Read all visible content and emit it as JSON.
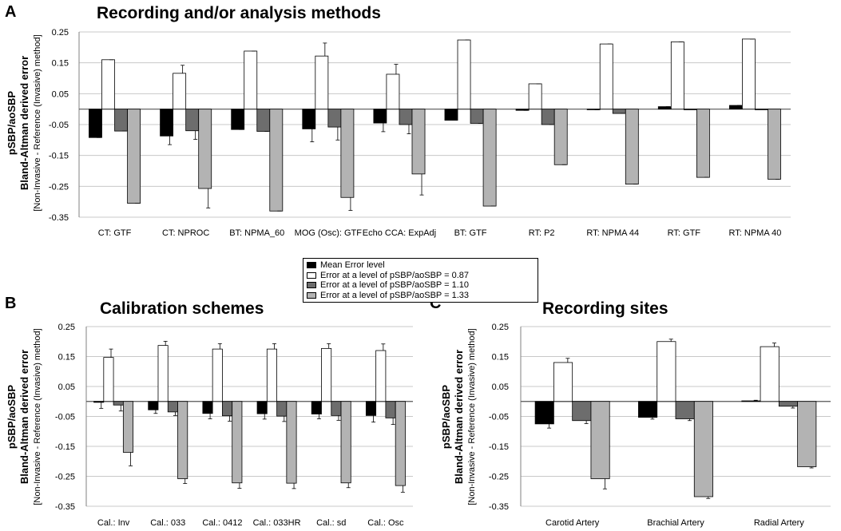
{
  "colors": {
    "mean": "#000000",
    "e087": "#ffffff",
    "e110": "#6d6d6d",
    "e133": "#b3b3b3",
    "grid": "#c8c8c8",
    "axis": "#808080"
  },
  "legend": {
    "items": [
      {
        "label": "Mean Error level",
        "color": "#000000"
      },
      {
        "label": "Error at a level of pSBP/aoSBP = 0.87",
        "color": "#ffffff"
      },
      {
        "label": "Error at a level of pSBP/aoSBP = 1.10",
        "color": "#6d6d6d"
      },
      {
        "label": "Error at a level of pSBP/aoSBP = 1.33",
        "color": "#b3b3b3"
      }
    ]
  },
  "chart_data": [
    {
      "panel": "A",
      "type": "bar",
      "title": "Recording and/or analysis methods",
      "ylabel_lines": [
        "pSBP/aoSBP",
        "Bland-Altman derived error",
        "[Non-Invasive - Reference (Invasive) method]"
      ],
      "ylim": [
        -0.35,
        0.25
      ],
      "yticks": [
        0.25,
        0.15,
        0.05,
        -0.05,
        -0.15,
        -0.25,
        -0.35
      ],
      "ytick_labels": [
        "0.25",
        "0.15",
        "0.05",
        "-0.05",
        "-0.15",
        "-0.25",
        "-0.35"
      ],
      "grid": true,
      "categories": [
        "CT: GTF",
        "CT: NPROC",
        "BT: NPMA_60",
        "MOG (Osc): GTF",
        "Echo CCA: ExpAdj",
        "BT: GTF",
        "RT: P2",
        "RT: NPMA 44",
        "RT: GTF",
        "RT: NPMA 40"
      ],
      "series": [
        {
          "name": "Mean Error level",
          "color": "#000000",
          "values": [
            -0.092,
            -0.087,
            -0.066,
            -0.064,
            -0.045,
            -0.036,
            -0.004,
            -0.002,
            0.008,
            0.012
          ],
          "errors": [
            0.0,
            0.028,
            0.0,
            0.042,
            0.028,
            0.0,
            0.0,
            0.0,
            0.0,
            0.0
          ]
        },
        {
          "name": "Error at a level of pSBP/aoSBP = 0.87",
          "color": "#ffffff",
          "values": [
            0.16,
            0.116,
            0.188,
            0.172,
            0.113,
            0.224,
            0.082,
            0.211,
            0.218,
            0.227
          ],
          "errors": [
            0.0,
            0.026,
            0.0,
            0.042,
            0.032,
            0.0,
            0.0,
            0.0,
            0.0,
            0.0
          ]
        },
        {
          "name": "Error at a level of pSBP/aoSBP = 1.10",
          "color": "#6d6d6d",
          "values": [
            -0.071,
            -0.07,
            -0.072,
            -0.058,
            -0.05,
            -0.046,
            -0.05,
            -0.014,
            -0.001,
            -0.001
          ],
          "errors": [
            0.0,
            0.028,
            0.0,
            0.042,
            0.03,
            0.0,
            0.0,
            0.0,
            0.0,
            0.0
          ]
        },
        {
          "name": "Error at a level of pSBP/aoSBP = 1.33",
          "color": "#b3b3b3",
          "values": [
            -0.305,
            -0.257,
            -0.33,
            -0.286,
            -0.21,
            -0.314,
            -0.18,
            -0.243,
            -0.221,
            -0.227
          ],
          "errors": [
            0.0,
            0.063,
            0.0,
            0.042,
            0.068,
            0.0,
            0.0,
            0.0,
            0.0,
            0.0
          ]
        }
      ]
    },
    {
      "panel": "B",
      "type": "bar",
      "title": "Calibration schemes",
      "ylabel_lines": [
        "pSBP/aoSBP",
        "Bland-Altman derived error",
        "[Non-Invasive - Reference (Invasive) method]"
      ],
      "ylim": [
        -0.35,
        0.25
      ],
      "yticks": [
        0.25,
        0.15,
        0.05,
        -0.05,
        -0.15,
        -0.25,
        -0.35
      ],
      "ytick_labels": [
        "0.25",
        "0.15",
        "0.05",
        "-0.05",
        "-0.15",
        "-0.25",
        "-0.35"
      ],
      "grid": true,
      "categories": [
        "Cal.: Inv",
        "Cal.: 033",
        "Cal.: 0412",
        "Cal.: 033HR",
        "Cal.: sd",
        "Cal.: Osc"
      ],
      "series": [
        {
          "name": "Mean Error level",
          "color": "#000000",
          "values": [
            -0.003,
            -0.028,
            -0.04,
            -0.041,
            -0.042,
            -0.047
          ],
          "errors": [
            0.02,
            0.012,
            0.018,
            0.018,
            0.016,
            0.022
          ]
        },
        {
          "name": "Error at a level of pSBP/aoSBP = 0.87",
          "color": "#ffffff",
          "values": [
            0.147,
            0.187,
            0.175,
            0.175,
            0.177,
            0.17
          ],
          "errors": [
            0.028,
            0.014,
            0.018,
            0.018,
            0.016,
            0.022
          ]
        },
        {
          "name": "Error at a level of pSBP/aoSBP = 1.10",
          "color": "#6d6d6d",
          "values": [
            -0.012,
            -0.035,
            -0.048,
            -0.049,
            -0.047,
            -0.055
          ],
          "errors": [
            0.02,
            0.012,
            0.018,
            0.018,
            0.016,
            0.022
          ]
        },
        {
          "name": "Error at a level of pSBP/aoSBP = 1.33",
          "color": "#b3b3b3",
          "values": [
            -0.17,
            -0.258,
            -0.272,
            -0.273,
            -0.272,
            -0.281
          ],
          "errors": [
            0.045,
            0.016,
            0.018,
            0.018,
            0.016,
            0.022
          ]
        }
      ]
    },
    {
      "panel": "C",
      "type": "bar",
      "title": "Recording sites",
      "ylabel_lines": [
        "pSBP/aoSBP",
        "Bland-Altman derived error",
        "[Non-Invasive - Reference (Invasive) method]"
      ],
      "ylim": [
        -0.35,
        0.25
      ],
      "yticks": [
        0.25,
        0.15,
        0.05,
        -0.05,
        -0.15,
        -0.25,
        -0.35
      ],
      "ytick_labels": [
        "0.25",
        "0.15",
        "0.05",
        "-0.05",
        "-0.15",
        "-0.25",
        "-0.35"
      ],
      "grid": true,
      "categories": [
        "Carotid Artery",
        "Brachial Artery",
        "Radial Artery"
      ],
      "series": [
        {
          "name": "Mean Error level",
          "color": "#000000",
          "values": [
            -0.075,
            -0.053,
            0.002
          ],
          "errors": [
            0.014,
            0.006,
            0.002
          ]
        },
        {
          "name": "Error at a level of pSBP/aoSBP = 0.87",
          "color": "#ffffff",
          "values": [
            0.13,
            0.2,
            0.183
          ],
          "errors": [
            0.014,
            0.008,
            0.012
          ]
        },
        {
          "name": "Error at a level of pSBP/aoSBP = 1.10",
          "color": "#6d6d6d",
          "values": [
            -0.064,
            -0.058,
            -0.016
          ],
          "errors": [
            0.01,
            0.006,
            0.006
          ]
        },
        {
          "name": "Error at a level of pSBP/aoSBP = 1.33",
          "color": "#b3b3b3",
          "values": [
            -0.258,
            -0.318,
            -0.218
          ],
          "errors": [
            0.034,
            0.006,
            0.004
          ]
        }
      ]
    }
  ],
  "panel_letters": [
    "A",
    "B",
    "C"
  ]
}
